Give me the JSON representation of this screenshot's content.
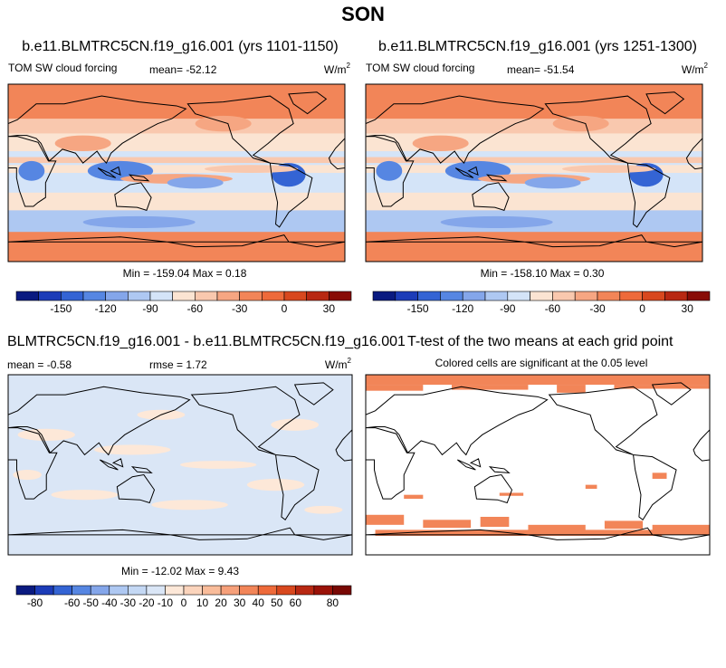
{
  "title": "SON",
  "panels": [
    {
      "title": "b.e11.BLMTRC5CN.f19_g16.001 (yrs 1101-1150)",
      "left_label": "TOM SW cloud forcing",
      "center_label": "mean= -52.12",
      "units": "W/m",
      "units_exponent": "2",
      "range_label": "Min = -159.04 Max =  0.18"
    },
    {
      "title": "b.e11.BLMTRC5CN.f19_g16.001 (yrs 1251-1300)",
      "left_label": "TOM SW cloud forcing",
      "center_label": "mean= -51.54",
      "units": "W/m",
      "units_exponent": "2",
      "range_label": "Min = -158.10 Max =  0.30"
    },
    {
      "title": "BLMTRC5CN.f19_g16.001 - b.e11.BLMTRC5CN.f19_g16.001",
      "left_label": "mean =  -0.58",
      "center_label": "rmse =  1.72",
      "units": "W/m",
      "units_exponent": "2",
      "range_label": "Min = -12.02 Max =   9.43"
    },
    {
      "title": "T-test of the two means at each grid point",
      "center_label": "Colored cells are significant at the 0.05 level"
    }
  ],
  "colorbars": [
    {
      "colors": [
        "#0a1a80",
        "#1c3cb8",
        "#3464d4",
        "#5686e2",
        "#84a6ea",
        "#aec8f2",
        "#d4e4f8",
        "#fbe4d2",
        "#f9c8ae",
        "#f6a682",
        "#f28558",
        "#ee6a3a",
        "#d8481e",
        "#b82812",
        "#880c06"
      ],
      "ticks": [
        -150,
        -120,
        -90,
        -60,
        -30,
        0,
        30
      ]
    },
    {
      "colors": [
        "#0a1a80",
        "#1c3cb8",
        "#3464d4",
        "#5686e2",
        "#84a6ea",
        "#aec8f2",
        "#d4e4f8",
        "#fbe4d2",
        "#f9c8ae",
        "#f6a682",
        "#f28558",
        "#ee6a3a",
        "#d8481e",
        "#b82812",
        "#880c06"
      ],
      "ticks": [
        -150,
        -120,
        -90,
        -60,
        -30,
        0,
        30
      ]
    },
    {
      "colors": [
        "#0a1a80",
        "#1c3cb8",
        "#3464d4",
        "#5686e2",
        "#84a6ea",
        "#aec8f2",
        "#c4d8f4",
        "#dae6f6",
        "#fde8d8",
        "#fbd4bc",
        "#f9bc9a",
        "#f6a07a",
        "#f28558",
        "#ee6a3a",
        "#d8481e",
        "#b82812",
        "#9a1208",
        "#780804"
      ],
      "ticks": [
        -80,
        -60,
        -50,
        -40,
        -30,
        -20,
        -10,
        0,
        10,
        20,
        30,
        40,
        50,
        60,
        80
      ]
    }
  ]
}
